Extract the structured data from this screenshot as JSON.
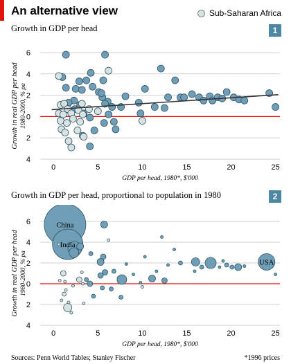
{
  "header": {
    "title": "An alternative view",
    "legend_label": "Sub-Saharan Africa",
    "legend_color": "#d8e3e1"
  },
  "colors": {
    "bubble": "#6f9eb6",
    "bubble_stroke": "#2f5568",
    "africa": "#d8e3e1",
    "zero_line": "#e3120b",
    "trend": "#333333",
    "grid": "#cfcfcf"
  },
  "footer": {
    "source": "Sources: Penn World Tables; Stanley Fischer",
    "note": "*1996 prices"
  },
  "chart_data": [
    {
      "type": "scatter",
      "number": "1",
      "title": "Growth in GDP per head",
      "xlabel": "GDP per head, 1980*, $'000",
      "ylabel": "Growth in real GDP per head",
      "ylabel_sub": "1980-2000, % pa",
      "xlim": [
        -1.5,
        25.5
      ],
      "ylim": [
        -4,
        6
      ],
      "x_ticks": [
        0,
        5,
        10,
        15,
        20,
        25
      ],
      "y_ticks": [
        6,
        4,
        2,
        0,
        -2,
        -4
      ],
      "y_tick_labels": [
        "6",
        "4",
        "2",
        "0",
        "2",
        "4"
      ],
      "y_tick_labels_note": "negative values shown without sign below the zero line",
      "trend_line": {
        "x": [
          -0.2,
          25.3
        ],
        "y": [
          0.65,
          2.05
        ]
      },
      "series": [
        {
          "africa": false,
          "points": [
            [
              1.4,
              5.8
            ],
            [
              5.8,
              5.8
            ],
            [
              4.2,
              4.1
            ],
            [
              1.0,
              3.7
            ],
            [
              2.9,
              3.3
            ],
            [
              3.7,
              3.4
            ],
            [
              4.4,
              2.8
            ],
            [
              2.5,
              2.6
            ],
            [
              3.2,
              2.5
            ],
            [
              5.1,
              2.3
            ],
            [
              5.5,
              1.8
            ],
            [
              6.1,
              1.4
            ],
            [
              6.6,
              0.9
            ],
            [
              5.6,
              3.4
            ],
            [
              5.4,
              2.2
            ],
            [
              1.4,
              2.7
            ],
            [
              2.3,
              1.5
            ],
            [
              3.0,
              1.1
            ],
            [
              1.7,
              1.3
            ],
            [
              2.4,
              0.7
            ],
            [
              3.4,
              0.3
            ],
            [
              4.1,
              -0.1
            ],
            [
              5.7,
              -0.6
            ],
            [
              6.8,
              -0.5
            ],
            [
              7.6,
              0.9
            ],
            [
              7.0,
              -1.2
            ],
            [
              4.6,
              -1.3
            ],
            [
              3.3,
              -1.8
            ],
            [
              4.1,
              -2.8
            ],
            [
              5.8,
              1.2
            ],
            [
              6.2,
              0.2
            ],
            [
              8.1,
              1.9
            ],
            [
              9.6,
              1.3
            ],
            [
              9.8,
              0.3
            ],
            [
              10.3,
              2.6
            ],
            [
              11.4,
              0.9
            ],
            [
              12.1,
              4.5
            ],
            [
              12.5,
              0.8
            ],
            [
              12.9,
              1.8
            ],
            [
              13.7,
              3.4
            ],
            [
              14.3,
              1.8
            ],
            [
              14.7,
              1.8
            ],
            [
              15.6,
              2.1
            ],
            [
              16.4,
              1.8
            ],
            [
              16.9,
              1.5
            ],
            [
              17.6,
              1.9
            ],
            [
              17.9,
              1.5
            ],
            [
              18.5,
              1.8
            ],
            [
              19.0,
              1.7
            ],
            [
              19.5,
              2.3
            ],
            [
              20.3,
              1.8
            ],
            [
              20.9,
              1.6
            ],
            [
              21.5,
              1.5
            ],
            [
              24.3,
              2.2
            ],
            [
              25.0,
              0.9
            ]
          ]
        },
        {
          "africa": true,
          "points": [
            [
              0.6,
              3.8
            ],
            [
              0.8,
              1.1
            ],
            [
              1.2,
              1.2
            ],
            [
              1.6,
              0.7
            ],
            [
              0.6,
              0.3
            ],
            [
              1.1,
              0.2
            ],
            [
              2.0,
              0.3
            ],
            [
              2.8,
              0.6
            ],
            [
              3.3,
              0.2
            ],
            [
              4.0,
              0.7
            ],
            [
              0.8,
              -0.4
            ],
            [
              1.5,
              -0.6
            ],
            [
              2.2,
              -0.2
            ],
            [
              3.0,
              -0.5
            ],
            [
              0.9,
              -1.2
            ],
            [
              1.3,
              -1.5
            ],
            [
              1.7,
              -2.3
            ],
            [
              2.0,
              -2.9
            ],
            [
              2.7,
              -1.3
            ],
            [
              3.4,
              -1.9
            ],
            [
              3.2,
              1.2
            ],
            [
              5.0,
              0.5
            ],
            [
              10.0,
              -0.4
            ],
            [
              6.2,
              4.3
            ]
          ]
        }
      ]
    },
    {
      "type": "scatter",
      "number": "2",
      "title": "Growth in GDP per head, proportional to population in 1980",
      "xlabel": "GDP per head, 1980*, $'000",
      "ylabel": "Growth in real GDP per head",
      "ylabel_sub": "1980-2000, % pa",
      "xlim": [
        -1.5,
        25.5
      ],
      "ylim": [
        -4,
        6
      ],
      "x_ticks": [
        0,
        5,
        10,
        15,
        20,
        25
      ],
      "y_ticks": [
        6,
        4,
        2,
        0,
        -2,
        -4
      ],
      "y_tick_labels": [
        "6",
        "4",
        "2",
        "0",
        "2",
        "4"
      ],
      "annotations": [
        "China",
        "India",
        "USA"
      ],
      "series": [
        {
          "africa": false,
          "points": [
            {
              "x": 1.3,
              "y": 5.7,
              "size": 30,
              "label": "China"
            },
            {
              "x": 1.6,
              "y": 3.8,
              "size": 22,
              "label": "India"
            },
            {
              "x": 24.0,
              "y": 2.1,
              "size": 12,
              "label": "USA"
            },
            {
              "x": 2.4,
              "y": 3.4,
              "size": 10
            },
            {
              "x": 2.3,
              "y": 3.0,
              "size": 7
            },
            {
              "x": 3.0,
              "y": 3.6,
              "size": 5
            },
            {
              "x": 5.7,
              "y": 5.7,
              "size": 5
            },
            {
              "x": 5.6,
              "y": 2.6,
              "size": 4
            },
            {
              "x": 4.2,
              "y": 2.9,
              "size": 3
            },
            {
              "x": 5.3,
              "y": 2.1,
              "size": 5
            },
            {
              "x": 5.3,
              "y": 0.8,
              "size": 4
            },
            {
              "x": 7.7,
              "y": 0.4,
              "size": 7
            },
            {
              "x": 5.8,
              "y": 1.1,
              "size": 4
            },
            {
              "x": 6.8,
              "y": 1.2,
              "size": 3
            },
            {
              "x": 7.6,
              "y": -1.3,
              "size": 3
            },
            {
              "x": 4.5,
              "y": -1.2,
              "size": 3
            },
            {
              "x": 4.1,
              "y": 0.0,
              "size": 4
            },
            {
              "x": 3.7,
              "y": 0.4,
              "size": 3
            },
            {
              "x": 6.5,
              "y": -0.5,
              "size": 3
            },
            {
              "x": 5.5,
              "y": -0.4,
              "size": 3
            },
            {
              "x": 8.2,
              "y": 1.9,
              "size": 2
            },
            {
              "x": 9.0,
              "y": 0.9,
              "size": 2
            },
            {
              "x": 9.8,
              "y": 0.1,
              "size": 2
            },
            {
              "x": 10.3,
              "y": 2.6,
              "size": 2
            },
            {
              "x": 11.1,
              "y": 0.5,
              "size": 5
            },
            {
              "x": 12.2,
              "y": 4.5,
              "size": 2
            },
            {
              "x": 12.5,
              "y": 0.3,
              "size": 4
            },
            {
              "x": 12.9,
              "y": 1.8,
              "size": 2
            },
            {
              "x": 13.6,
              "y": 3.3,
              "size": 2
            },
            {
              "x": 14.3,
              "y": 2.0,
              "size": 3
            },
            {
              "x": 16.0,
              "y": 2.1,
              "size": 6
            },
            {
              "x": 16.7,
              "y": 1.6,
              "size": 3
            },
            {
              "x": 17.7,
              "y": 2.0,
              "size": 8
            },
            {
              "x": 18.7,
              "y": 1.6,
              "size": 2
            },
            {
              "x": 19.1,
              "y": 2.2,
              "size": 2
            },
            {
              "x": 19.5,
              "y": 1.8,
              "size": 3
            },
            {
              "x": 20.1,
              "y": 1.6,
              "size": 3
            },
            {
              "x": 20.8,
              "y": 1.6,
              "size": 5
            },
            {
              "x": 21.5,
              "y": 1.7,
              "size": 2
            },
            {
              "x": 15.9,
              "y": 1.2,
              "size": 2
            },
            {
              "x": 25.0,
              "y": 0.9,
              "size": 2
            },
            {
              "x": 11.6,
              "y": 1.2,
              "size": 2
            }
          ]
        },
        {
          "africa": true,
          "points": [
            {
              "x": 1.6,
              "y": -2.3,
              "size": 6
            },
            {
              "x": 1.1,
              "y": 1.0,
              "size": 4
            },
            {
              "x": 2.9,
              "y": 0.4,
              "size": 4
            },
            {
              "x": 1.2,
              "y": -1.0,
              "size": 3
            },
            {
              "x": 0.7,
              "y": 0.3,
              "size": 2
            },
            {
              "x": 1.4,
              "y": -0.6,
              "size": 2
            },
            {
              "x": 2.2,
              "y": -0.2,
              "size": 2
            },
            {
              "x": 3.3,
              "y": 0.0,
              "size": 2
            },
            {
              "x": 0.9,
              "y": -1.6,
              "size": 2
            },
            {
              "x": 1.7,
              "y": -1.8,
              "size": 2
            },
            {
              "x": 2.0,
              "y": -2.8,
              "size": 2
            },
            {
              "x": 3.4,
              "y": -1.9,
              "size": 2
            },
            {
              "x": 0.6,
              "y": 3.8,
              "size": 2
            },
            {
              "x": 1.3,
              "y": 0.2,
              "size": 2
            },
            {
              "x": 3.2,
              "y": 1.1,
              "size": 2
            },
            {
              "x": 10.0,
              "y": -0.3,
              "size": 2
            },
            {
              "x": 6.2,
              "y": 4.2,
              "size": 2
            }
          ]
        }
      ]
    }
  ]
}
